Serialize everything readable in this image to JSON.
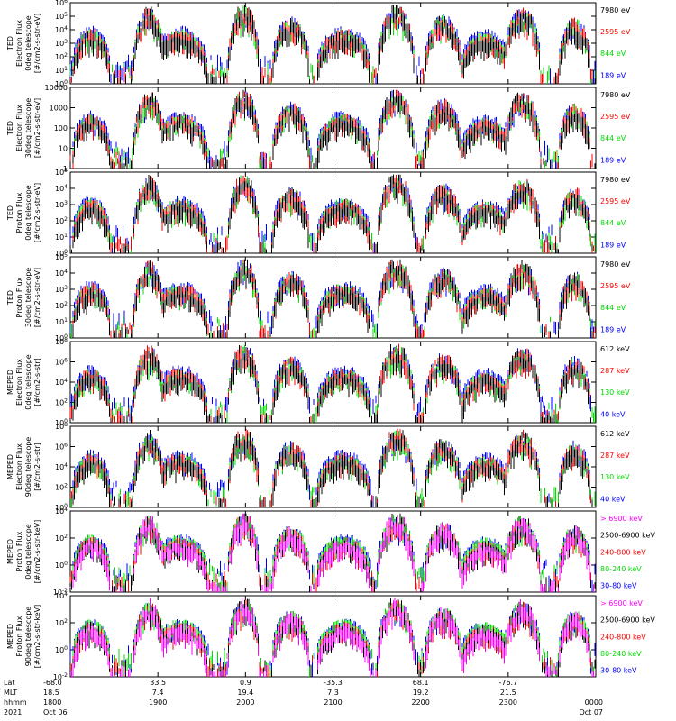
{
  "chart_data": [
    {
      "type": "line",
      "ylabel": [
        "TED",
        "Electron Flux",
        "0deg telescope",
        "[#/cm2-s-str-eV]"
      ],
      "ylim": [
        1,
        1000000
      ],
      "yscale": "log",
      "ytick_labels": [
        [
          "10",
          "0"
        ],
        [
          "10",
          "1"
        ],
        [
          "10",
          "2"
        ],
        [
          "10",
          "3"
        ],
        [
          "10",
          "4"
        ],
        [
          "10",
          "5"
        ],
        [
          "10",
          "6"
        ]
      ],
      "series": [
        {
          "name": "7980 eV",
          "color": "#000000"
        },
        {
          "name": "2595 eV",
          "color": "#ff0000"
        },
        {
          "name": "844 eV",
          "color": "#00dd00"
        },
        {
          "name": "189 eV",
          "color": "#0000ff"
        }
      ]
    },
    {
      "type": "line",
      "ylabel": [
        "TED",
        "Electron Flux",
        "30deg telescope",
        "[#/cm2-s-str-eV]"
      ],
      "ylim": [
        1,
        10000
      ],
      "yscale": "log",
      "ytick_labels": [
        [
          "1",
          ""
        ],
        [
          "10",
          ""
        ],
        [
          "100",
          ""
        ],
        [
          "1000",
          ""
        ],
        [
          "10000",
          ""
        ]
      ],
      "series": [
        {
          "name": "7980 eV",
          "color": "#000000"
        },
        {
          "name": "2595 eV",
          "color": "#ff0000"
        },
        {
          "name": "844 eV",
          "color": "#00dd00"
        },
        {
          "name": "189 eV",
          "color": "#0000ff"
        }
      ]
    },
    {
      "type": "line",
      "ylabel": [
        "TED",
        "Proton Flux",
        "0deg telescope",
        "[#/cm2-s-str-eV]"
      ],
      "ylim": [
        1,
        100000
      ],
      "yscale": "log",
      "ytick_labels": [
        [
          "10",
          "0"
        ],
        [
          "10",
          "1"
        ],
        [
          "10",
          "2"
        ],
        [
          "10",
          "3"
        ],
        [
          "10",
          "4"
        ],
        [
          "10",
          "5"
        ]
      ],
      "series": [
        {
          "name": "7980 eV",
          "color": "#000000"
        },
        {
          "name": "2595 eV",
          "color": "#ff0000"
        },
        {
          "name": "844 eV",
          "color": "#00dd00"
        },
        {
          "name": "189 eV",
          "color": "#0000ff"
        }
      ]
    },
    {
      "type": "line",
      "ylabel": [
        "TED",
        "Proton Flux",
        "30deg telescope",
        "[#/cm2-s-str-eV]"
      ],
      "ylim": [
        1,
        100000
      ],
      "yscale": "log",
      "ytick_labels": [
        [
          "10",
          "0"
        ],
        [
          "10",
          "1"
        ],
        [
          "10",
          "2"
        ],
        [
          "10",
          "3"
        ],
        [
          "10",
          "4"
        ],
        [
          "10",
          "5"
        ]
      ],
      "series": [
        {
          "name": "7980 eV",
          "color": "#000000"
        },
        {
          "name": "2595 eV",
          "color": "#ff0000"
        },
        {
          "name": "844 eV",
          "color": "#00dd00"
        },
        {
          "name": "189 eV",
          "color": "#0000ff"
        }
      ]
    },
    {
      "type": "line",
      "ylabel": [
        "MEPED",
        "Electron Flux",
        "0deg telescope",
        "[#/cm2-s-str]"
      ],
      "ylim": [
        1,
        100000000
      ],
      "yscale": "log",
      "ytick_labels": [
        [
          "10",
          "0"
        ],
        [
          "10",
          "2"
        ],
        [
          "10",
          "4"
        ],
        [
          "10",
          "6"
        ],
        [
          "10",
          "8"
        ]
      ],
      "series": [
        {
          "name": "612 keV",
          "color": "#000000"
        },
        {
          "name": "287 keV",
          "color": "#ff0000"
        },
        {
          "name": "130 keV",
          "color": "#00dd00"
        },
        {
          "name": "40 keV",
          "color": "#0000ff"
        }
      ]
    },
    {
      "type": "line",
      "ylabel": [
        "MEPED",
        "Electron Flux",
        "90deg telescope",
        "[#/cm2-s-str]"
      ],
      "ylim": [
        1,
        100000000
      ],
      "yscale": "log",
      "ytick_labels": [
        [
          "10",
          "0"
        ],
        [
          "10",
          "2"
        ],
        [
          "10",
          "4"
        ],
        [
          "10",
          "6"
        ],
        [
          "10",
          "8"
        ]
      ],
      "series": [
        {
          "name": "612 keV",
          "color": "#000000"
        },
        {
          "name": "287 keV",
          "color": "#ff0000"
        },
        {
          "name": "130 keV",
          "color": "#00dd00"
        },
        {
          "name": "40 keV",
          "color": "#0000ff"
        }
      ]
    },
    {
      "type": "line",
      "ylabel": [
        "MEPED",
        "Proton Flux",
        "0deg telescope",
        "[#/cm2-s-str-keV]"
      ],
      "ylim": [
        0.01,
        100000
      ],
      "yscale": "log",
      "ytick_labels": [
        [
          "10",
          "-2"
        ],
        [
          "10",
          "0"
        ],
        [
          "10",
          "2"
        ],
        [
          "10",
          "4"
        ]
      ],
      "series": [
        {
          "name": "> 6900 keV",
          "color": "#ff00ff"
        },
        {
          "name": "2500-6900 keV",
          "color": "#000000"
        },
        {
          "name": "240-800 keV",
          "color": "#ff0000"
        },
        {
          "name": "80-240 keV",
          "color": "#00dd00"
        },
        {
          "name": "30-80 keV",
          "color": "#0000ff"
        }
      ]
    },
    {
      "type": "line",
      "ylabel": [
        "MEPED",
        "Proton Flux",
        "90deg telescope",
        "[#/cm2-s-str-keV]"
      ],
      "ylim": [
        0.01,
        100000
      ],
      "yscale": "log",
      "ytick_labels": [
        [
          "10",
          "-2"
        ],
        [
          "10",
          "0"
        ],
        [
          "10",
          "2"
        ],
        [
          "10",
          "4"
        ]
      ],
      "series": [
        {
          "name": "> 6900 keV",
          "color": "#ff00ff"
        },
        {
          "name": "2500-6900 keV",
          "color": "#000000"
        },
        {
          "name": "240-800 keV",
          "color": "#ff0000"
        },
        {
          "name": "80-240 keV",
          "color": "#00dd00"
        },
        {
          "name": "30-80 keV",
          "color": "#0000ff"
        }
      ]
    }
  ],
  "xaxis": {
    "row_labels": [
      "Lat",
      "MLT",
      "hhmm",
      "2021"
    ],
    "xlim": [
      "1800",
      "0000"
    ],
    "ticks": [
      {
        "lat": "-68.0",
        "mlt": "18.5",
        "hhmm": "1800",
        "date": "Oct 06"
      },
      {
        "lat": "33.5",
        "mlt": "7.4",
        "hhmm": "1900",
        "date": ""
      },
      {
        "lat": "0.9",
        "mlt": "19.4",
        "hhmm": "2000",
        "date": ""
      },
      {
        "lat": "-35.3",
        "mlt": "7.3",
        "hhmm": "2100",
        "date": ""
      },
      {
        "lat": "68.1",
        "mlt": "19.2",
        "hhmm": "2200",
        "date": ""
      },
      {
        "lat": "-76.7",
        "mlt": "21.5",
        "hhmm": "2300",
        "date": ""
      },
      {
        "lat": "",
        "mlt": "",
        "hhmm": "0000",
        "date": "Oct 07"
      }
    ]
  },
  "passes": [
    {
      "center": 0.04,
      "half_width": 0.035,
      "peak": 0.55
    },
    {
      "center": 0.15,
      "half_width": 0.03,
      "peak": 0.85
    },
    {
      "center": 0.21,
      "half_width": 0.05,
      "peak": 0.55
    },
    {
      "center": 0.33,
      "half_width": 0.03,
      "peak": 0.9
    },
    {
      "center": 0.42,
      "half_width": 0.035,
      "peak": 0.7
    },
    {
      "center": 0.52,
      "half_width": 0.05,
      "peak": 0.55
    },
    {
      "center": 0.62,
      "half_width": 0.035,
      "peak": 0.9
    },
    {
      "center": 0.71,
      "half_width": 0.035,
      "peak": 0.75
    },
    {
      "center": 0.79,
      "half_width": 0.045,
      "peak": 0.5
    },
    {
      "center": 0.86,
      "half_width": 0.035,
      "peak": 0.85
    },
    {
      "center": 0.96,
      "half_width": 0.03,
      "peak": 0.7
    }
  ]
}
